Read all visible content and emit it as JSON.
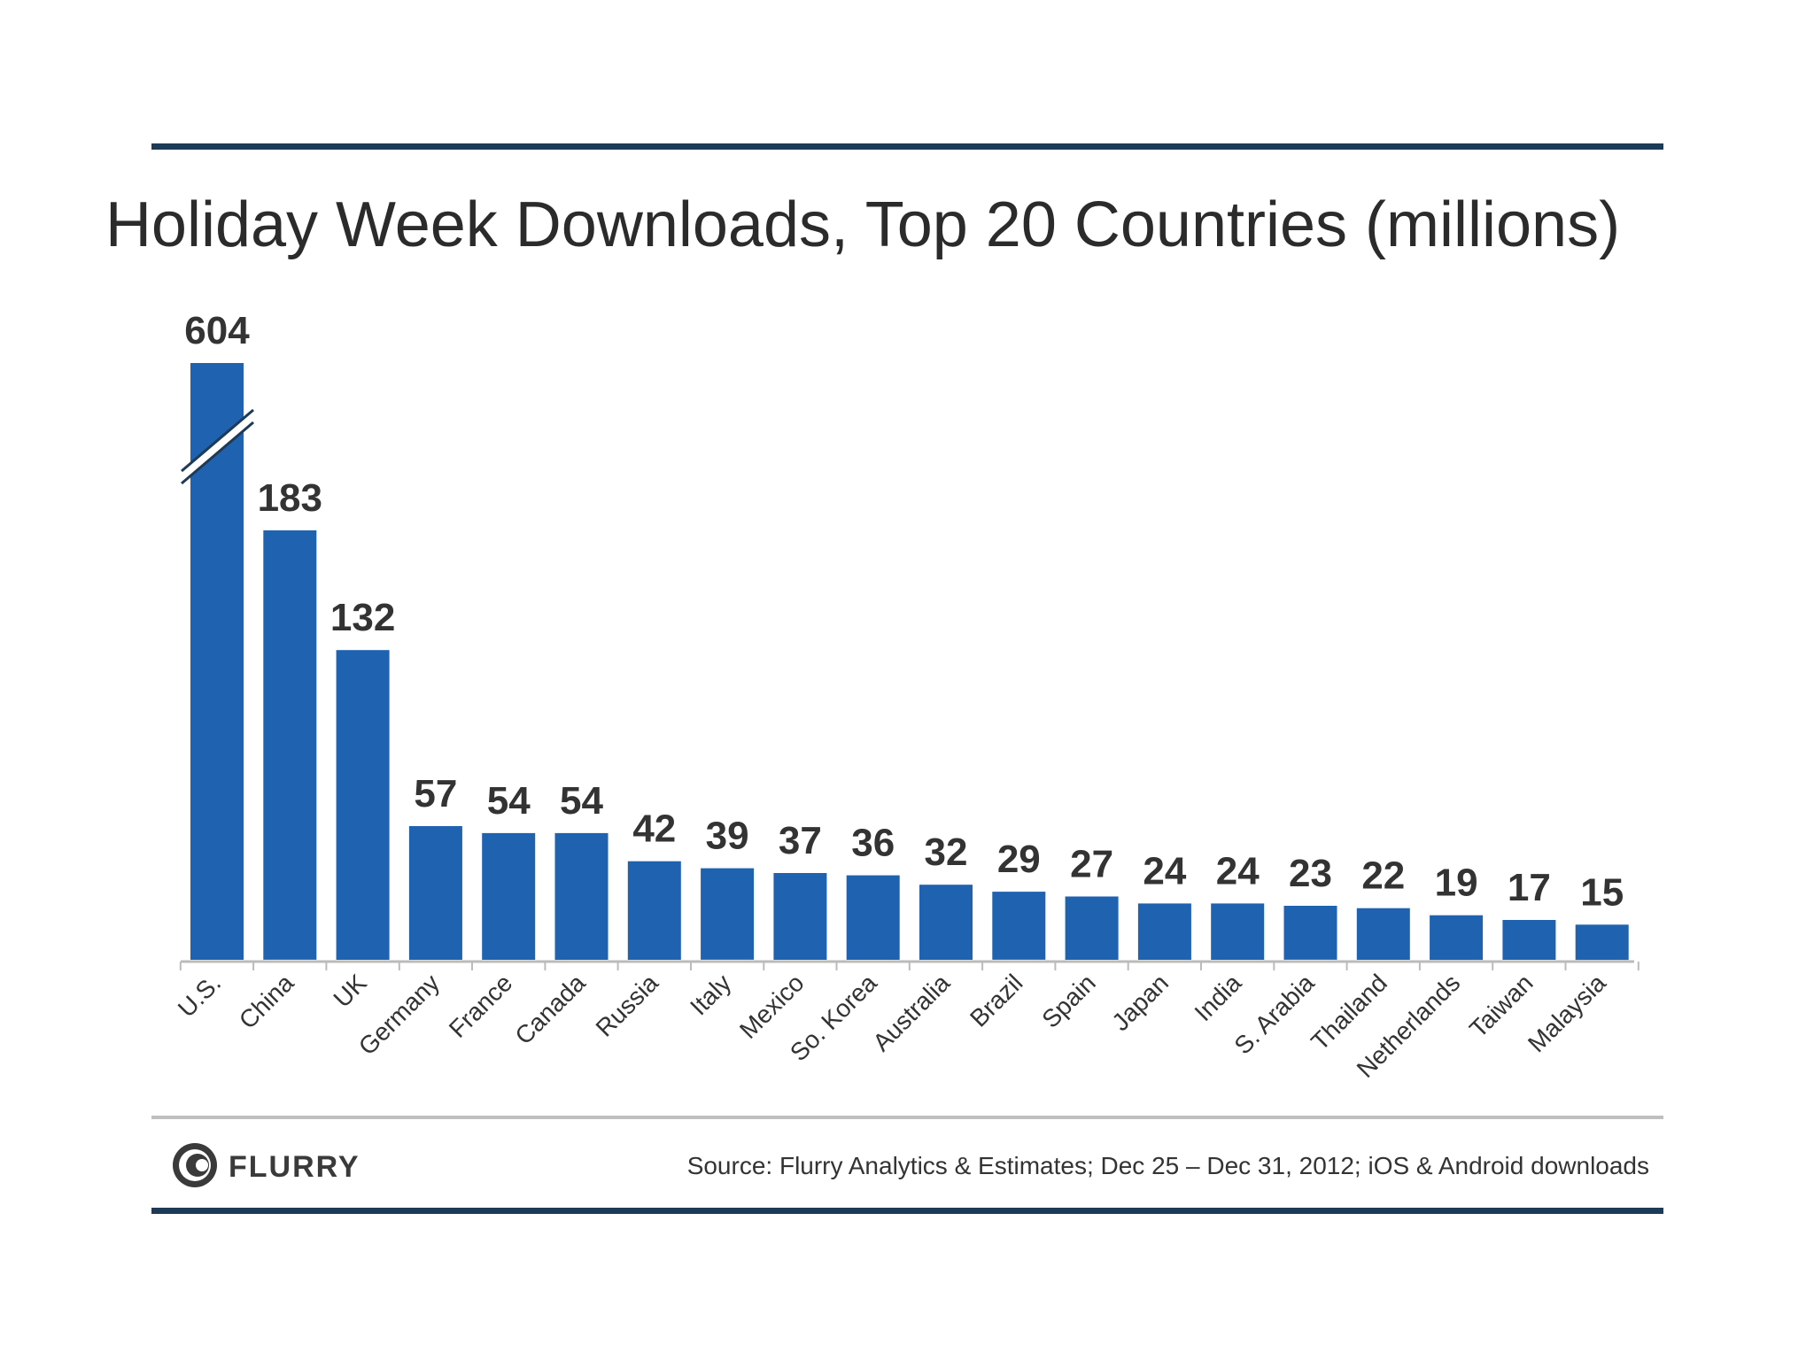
{
  "chart_data": {
    "type": "bar",
    "title": "Holiday Week Downloads, Top 20 Countries (millions)",
    "xlabel": "",
    "ylabel": "",
    "categories": [
      "U.S.",
      "China",
      "UK",
      "Germany",
      "France",
      "Canada",
      "Russia",
      "Italy",
      "Mexico",
      "So. Korea",
      "Australia",
      "Brazil",
      "Spain",
      "Japan",
      "India",
      "S. Arabia",
      "Thailand",
      "Netherlands",
      "Taiwan",
      "Malaysia"
    ],
    "values": [
      604,
      183,
      132,
      57,
      54,
      54,
      42,
      39,
      37,
      36,
      32,
      29,
      27,
      24,
      24,
      23,
      22,
      19,
      17,
      15
    ],
    "broken_axis_category": "U.S.",
    "grid": false,
    "legend": "none"
  },
  "colors": {
    "bar": "#1f62b0",
    "rule": "#1d3a56",
    "footer_rule": "#bfbfbf",
    "axis": "#bbbbbb"
  },
  "footer": {
    "logo_icon": "flurry-logo-icon",
    "logo_text": "FLURRY",
    "source": "Source: Flurry Analytics & Estimates; Dec 25 – Dec 31, 2012; iOS & Android downloads"
  }
}
